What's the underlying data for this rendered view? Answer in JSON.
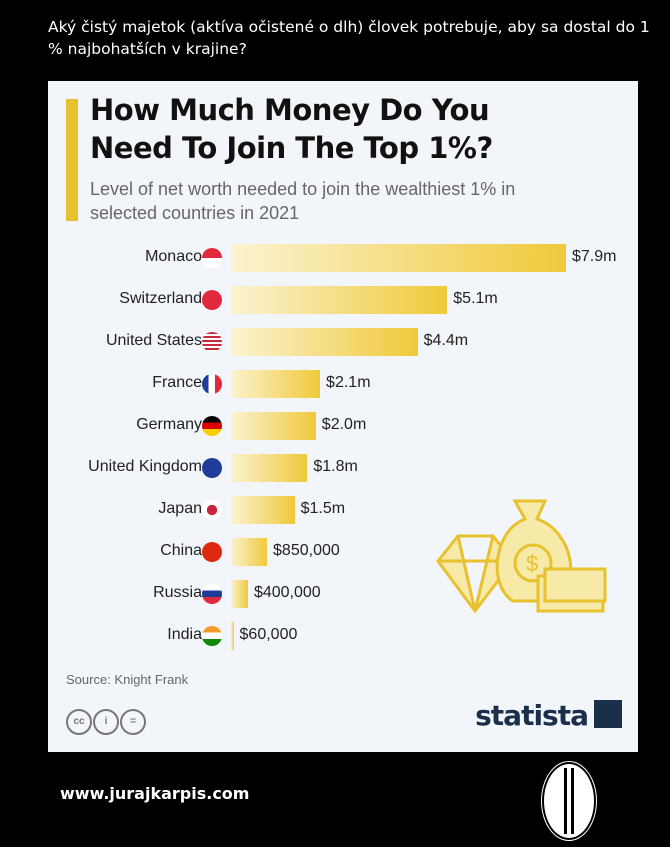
{
  "header": {
    "question": "Aký čistý majetok (aktíva očistené o dlh) človek potrebuje, aby sa dostal do 1 % najbohatších v krajine?"
  },
  "chart_data": {
    "type": "bar",
    "orientation": "horizontal",
    "title": "How Much Money Do You Need To Join The Top 1%?",
    "subtitle": "Level of net worth needed to join the wealthiest 1% in selected countries in 2021",
    "unit": "USD millions",
    "categories": [
      "Monaco",
      "Switzerland",
      "United States",
      "France",
      "Germany",
      "United Kingdom",
      "Japan",
      "China",
      "Russia",
      "India"
    ],
    "values": [
      7.9,
      5.1,
      4.4,
      2.1,
      2.0,
      1.8,
      1.5,
      0.85,
      0.4,
      0.06
    ],
    "labels": [
      "$7.9m",
      "$5.1m",
      "$4.4m",
      "$2.1m",
      "$2.0m",
      "$1.8m",
      "$1.5m",
      "$850,000",
      "$400,000",
      "$60,000"
    ],
    "flags": [
      "monaco-flag",
      "switzerland-flag",
      "us-flag",
      "france-flag",
      "germany-flag",
      "uk-flag",
      "japan-flag",
      "china-flag",
      "russia-flag",
      "india-flag"
    ],
    "bar_color": "#f0c93a"
  },
  "footer": {
    "source": "Source: Knight Frank",
    "brand": "statista",
    "cc": [
      "cc",
      "i",
      "="
    ],
    "website": "www.jurajkarpis.com"
  }
}
